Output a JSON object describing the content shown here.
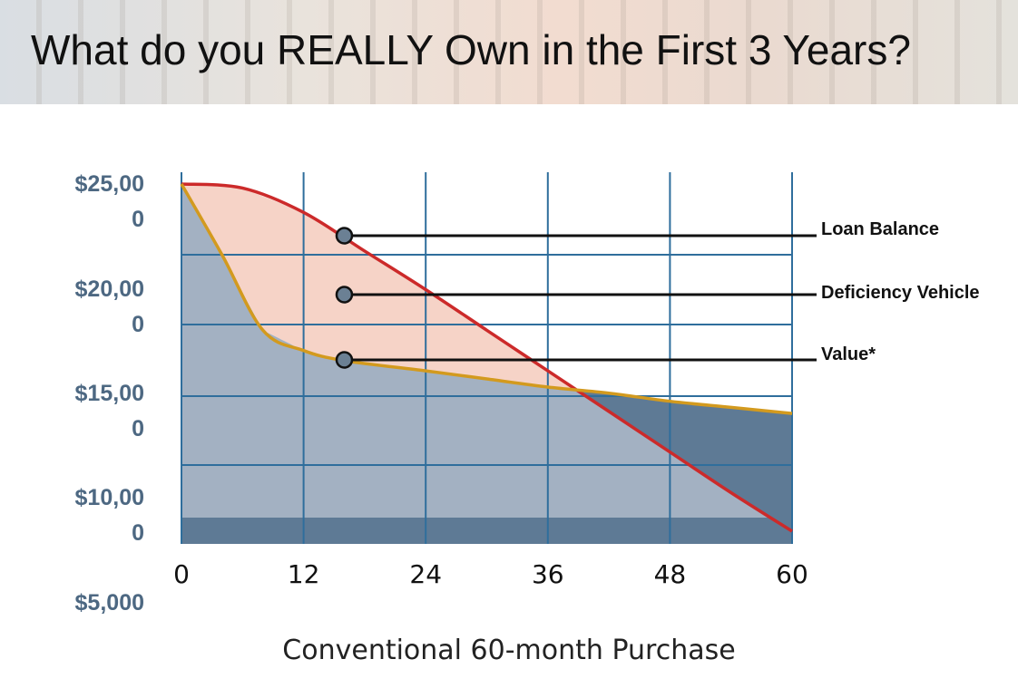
{
  "slide": {
    "title": "What do you REALLY Own in the First 3 Years?"
  },
  "chart_data": {
    "type": "area",
    "title": "",
    "xlabel": "Conventional 60-month Purchase",
    "ylabel": "",
    "x_ticks": [
      "0",
      "12",
      "24",
      "36",
      "48",
      "60"
    ],
    "y_ticks": [
      {
        "value": 25000,
        "lines": [
          "$25,00",
          "0"
        ]
      },
      {
        "value": 20000,
        "lines": [
          "$20,00",
          "0"
        ]
      },
      {
        "value": 15000,
        "lines": [
          "$15,00",
          "0"
        ]
      },
      {
        "value": 10000,
        "lines": [
          "$10,00",
          "0"
        ]
      },
      {
        "value": 5000,
        "lines": [
          "$5,000"
        ]
      }
    ],
    "xlim": [
      0,
      60
    ],
    "grid": true,
    "series": [
      {
        "name": "Loan Balance",
        "color": "#cc2a2a",
        "x": [
          0,
          6,
          12,
          18,
          24,
          30,
          36,
          42,
          48,
          54,
          60
        ],
        "y": [
          25000,
          24800,
          23600,
          21700,
          19800,
          17800,
          15800,
          13800,
          11800,
          9800,
          7900
        ]
      },
      {
        "name": "Value*",
        "color": "#d39a1e",
        "x": [
          0,
          4,
          8,
          12,
          16,
          24,
          30,
          36,
          42,
          48,
          54,
          60
        ],
        "y": [
          25000,
          21500,
          17800,
          16800,
          16300,
          15800,
          15400,
          15000,
          14700,
          14300,
          14000,
          13700
        ]
      }
    ],
    "annotations": [
      {
        "label": "Loan Balance",
        "x": 16
      },
      {
        "label": "Deficiency Vehicle",
        "x": 16
      },
      {
        "label": "Value*",
        "x": 16
      }
    ],
    "colors": {
      "depreciated_area": "#a3b1c2",
      "deficiency_area": "#f6d3c7",
      "equity_below_loan_area": "#5e7a95",
      "base_band": "#5e7a95",
      "gridline": "#2f6e9c",
      "axis_text": "#4d6882",
      "marker_fill": "#6b8094"
    }
  }
}
